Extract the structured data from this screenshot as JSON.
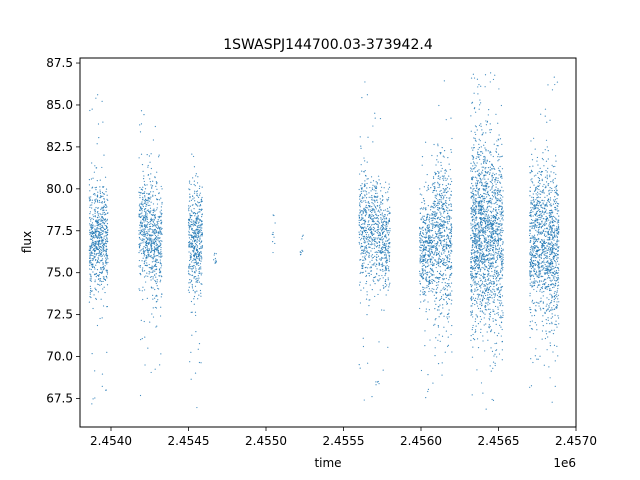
{
  "chart_data": {
    "type": "scatter",
    "title": "1SWASPJ144700.03-373942.4",
    "xlabel": "time",
    "ylabel": "flux",
    "x_offset_label": "1e6",
    "xlim": [
      2453800,
      2457000
    ],
    "ylim": [
      65.8,
      87.8
    ],
    "x_ticks": [
      2454000,
      2454500,
      2455000,
      2455500,
      2456000,
      2456500,
      2457000
    ],
    "x_tick_labels": [
      "2.4540",
      "2.4545",
      "2.4550",
      "2.4555",
      "2.4560",
      "2.4565",
      "2.4570"
    ],
    "y_ticks": [
      67.5,
      70.0,
      72.5,
      75.0,
      77.5,
      80.0,
      82.5,
      85.0,
      87.5
    ],
    "y_tick_labels": [
      "67.5",
      "70.0",
      "72.5",
      "75.0",
      "77.5",
      "80.0",
      "82.5",
      "85.0",
      "87.5"
    ],
    "grid": false,
    "legend": false,
    "marker_color": "#1f77b4",
    "series": [
      {
        "clusters": [
          {
            "x_range": [
              2453860,
              2453980
            ],
            "y_center": 77.0,
            "y_spread": 1.6,
            "y_min": 67.0,
            "y_max": 86.8,
            "n_points": 650
          },
          {
            "x_range": [
              2454180,
              2454260
            ],
            "y_center": 77.6,
            "y_spread": 1.6,
            "y_min": 67.2,
            "y_max": 85.6,
            "n_points": 380
          },
          {
            "x_range": [
              2454260,
              2454330
            ],
            "y_center": 76.9,
            "y_spread": 1.7,
            "y_min": 67.2,
            "y_max": 85.6,
            "n_points": 330
          },
          {
            "x_range": [
              2454500,
              2454590
            ],
            "y_center": 77.0,
            "y_spread": 1.6,
            "y_min": 66.8,
            "y_max": 86.6,
            "n_points": 480
          },
          {
            "x_range": [
              2454660,
              2454680
            ],
            "y_center": 75.9,
            "y_spread": 0.3,
            "y_min": 75.4,
            "y_max": 76.5,
            "n_points": 10
          },
          {
            "x_range": [
              2455040,
              2455060
            ],
            "y_center": 77.5,
            "y_spread": 0.8,
            "y_min": 75.8,
            "y_max": 78.5,
            "n_points": 10
          },
          {
            "x_range": [
              2455220,
              2455240
            ],
            "y_center": 76.5,
            "y_spread": 0.6,
            "y_min": 75.8,
            "y_max": 77.5,
            "n_points": 10
          },
          {
            "x_range": [
              2455600,
              2455730
            ],
            "y_center": 77.5,
            "y_spread": 1.7,
            "y_min": 67.2,
            "y_max": 86.5,
            "n_points": 520
          },
          {
            "x_range": [
              2455730,
              2455800
            ],
            "y_center": 77.0,
            "y_spread": 1.5,
            "y_min": 68.0,
            "y_max": 84.5,
            "n_points": 280
          },
          {
            "x_range": [
              2455990,
              2456080
            ],
            "y_center": 76.6,
            "y_spread": 1.6,
            "y_min": 67.5,
            "y_max": 83.0,
            "n_points": 420
          },
          {
            "x_range": [
              2456080,
              2456200
            ],
            "y_center": 77.2,
            "y_spread": 2.4,
            "y_min": 67.0,
            "y_max": 86.5,
            "n_points": 640
          },
          {
            "x_range": [
              2456320,
              2456420
            ],
            "y_center": 77.5,
            "y_spread": 3.0,
            "y_min": 66.8,
            "y_max": 87.0,
            "n_points": 900
          },
          {
            "x_range": [
              2456420,
              2456530
            ],
            "y_center": 77.0,
            "y_spread": 2.8,
            "y_min": 66.8,
            "y_max": 87.0,
            "n_points": 800
          },
          {
            "x_range": [
              2456700,
              2456800
            ],
            "y_center": 77.0,
            "y_spread": 2.2,
            "y_min": 67.5,
            "y_max": 86.5,
            "n_points": 620
          },
          {
            "x_range": [
              2456800,
              2456890
            ],
            "y_center": 76.5,
            "y_spread": 2.4,
            "y_min": 66.8,
            "y_max": 87.0,
            "n_points": 600
          }
        ]
      }
    ]
  }
}
